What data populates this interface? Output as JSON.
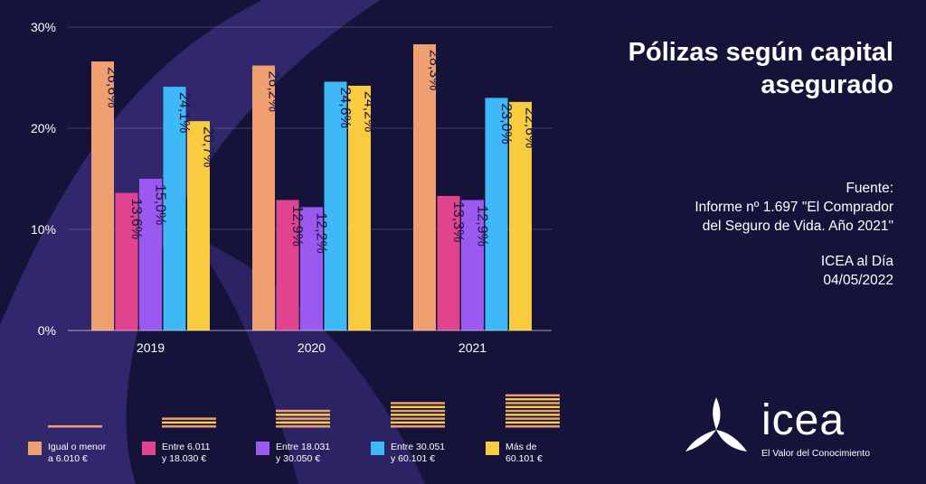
{
  "title": {
    "line1": "Pólizas según capital",
    "line2": "asegurado"
  },
  "source": {
    "label": "Fuente:",
    "line1": "Informe nº 1.697 \"El Comprador",
    "line2": "del Seguro de Vida. Año 2021\"",
    "line3": "ICEA al Día",
    "date": "04/05/2022"
  },
  "logo": {
    "word": "icea",
    "tagline": "El Valor del Conocimiento"
  },
  "colors": {
    "background": "#16133a",
    "wave": "#3a2f7e"
  },
  "chart_data": {
    "type": "bar",
    "categories": [
      "2019",
      "2020",
      "2021"
    ],
    "ylim": [
      0,
      30
    ],
    "yticks": [
      0,
      10,
      20,
      30
    ],
    "ytick_labels": [
      "0%",
      "10%",
      "20%",
      "30%"
    ],
    "grid": true,
    "legend_position": "bottom",
    "series": [
      {
        "name": "Igual o menor a 6.010 €",
        "legend": [
          "Igual o menor",
          "a 6.010 €"
        ],
        "color": "#f0a070",
        "values": [
          26.6,
          26.2,
          28.3
        ],
        "labels": [
          "26,6%",
          "26,2%",
          "28,3%"
        ]
      },
      {
        "name": "Entre 6.011 y 18.030 €",
        "legend": [
          "Entre 6.011",
          "y 18.030 €"
        ],
        "color": "#e2438f",
        "values": [
          13.6,
          12.9,
          13.3
        ],
        "labels": [
          "13,6%",
          "12,9%",
          "13,3%"
        ]
      },
      {
        "name": "Entre 18.031 y 30.050 €",
        "legend": [
          "Entre 18.031",
          "y 30.050 €"
        ],
        "color": "#9b59f0",
        "values": [
          15.0,
          12.2,
          12.9
        ],
        "labels": [
          "15,0%",
          "12,2%",
          "12,9%"
        ]
      },
      {
        "name": "Entre 30.051 y 60.101 €",
        "legend": [
          "Entre 30.051",
          "y 60.101 €"
        ],
        "color": "#3fb8f7",
        "values": [
          24.1,
          24.6,
          23.0
        ],
        "labels": [
          "24,1%",
          "24,6%",
          "23,0%"
        ]
      },
      {
        "name": "Más de 60.101 €",
        "legend": [
          "Más de",
          "60.101 €"
        ],
        "color": "#f8cc3e",
        "values": [
          20.7,
          24.2,
          22.6
        ],
        "labels": [
          "20,7%",
          "24,2%",
          "22,6%"
        ]
      }
    ],
    "legend_stripes": [
      1,
      3,
      5,
      7,
      9
    ]
  }
}
